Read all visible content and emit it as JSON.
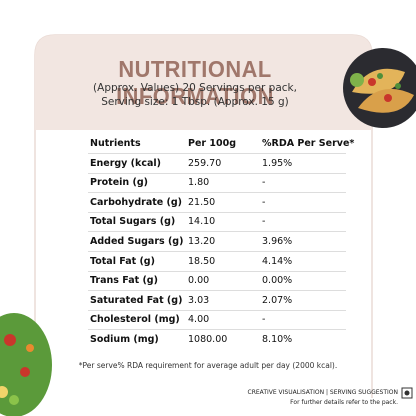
{
  "header": {
    "title": "NUTRITIONAL INFORMATION",
    "subtitle": [
      "(Approx. Values) 20 Servings per pack,",
      "Serving size: 1 Tbsp. (Approx. 15 g)"
    ]
  },
  "table": {
    "columns": [
      "Nutrients",
      "Per 100g",
      "%RDA Per Serve*"
    ],
    "rows": [
      [
        "Energy (kcal)",
        "259.70",
        "1.95%"
      ],
      [
        "Protein (g)",
        "1.80",
        "-"
      ],
      [
        "Carbohydrate (g)",
        "21.50",
        "-"
      ],
      [
        "Total Sugars (g)",
        "14.10",
        "-"
      ],
      [
        "Added Sugars (g)",
        "13.20",
        "3.96%"
      ],
      [
        "Total Fat (g)",
        "18.50",
        "4.14%"
      ],
      [
        "Trans Fat (g)",
        "0.00",
        "0.00%"
      ],
      [
        "Saturated Fat (g)",
        "3.03",
        "2.07%"
      ],
      [
        "Cholesterol (mg)",
        "4.00",
        "-"
      ],
      [
        "Sodium (mg)",
        "1080.00",
        "8.10%"
      ]
    ]
  },
  "footnote": "*Per serve% RDA requirement for average adult per day (2000 kcal).",
  "footer": [
    "CREATIVE VISUALISATION | SERVING SUGGESTION",
    "For further details refer to the pack."
  ]
}
